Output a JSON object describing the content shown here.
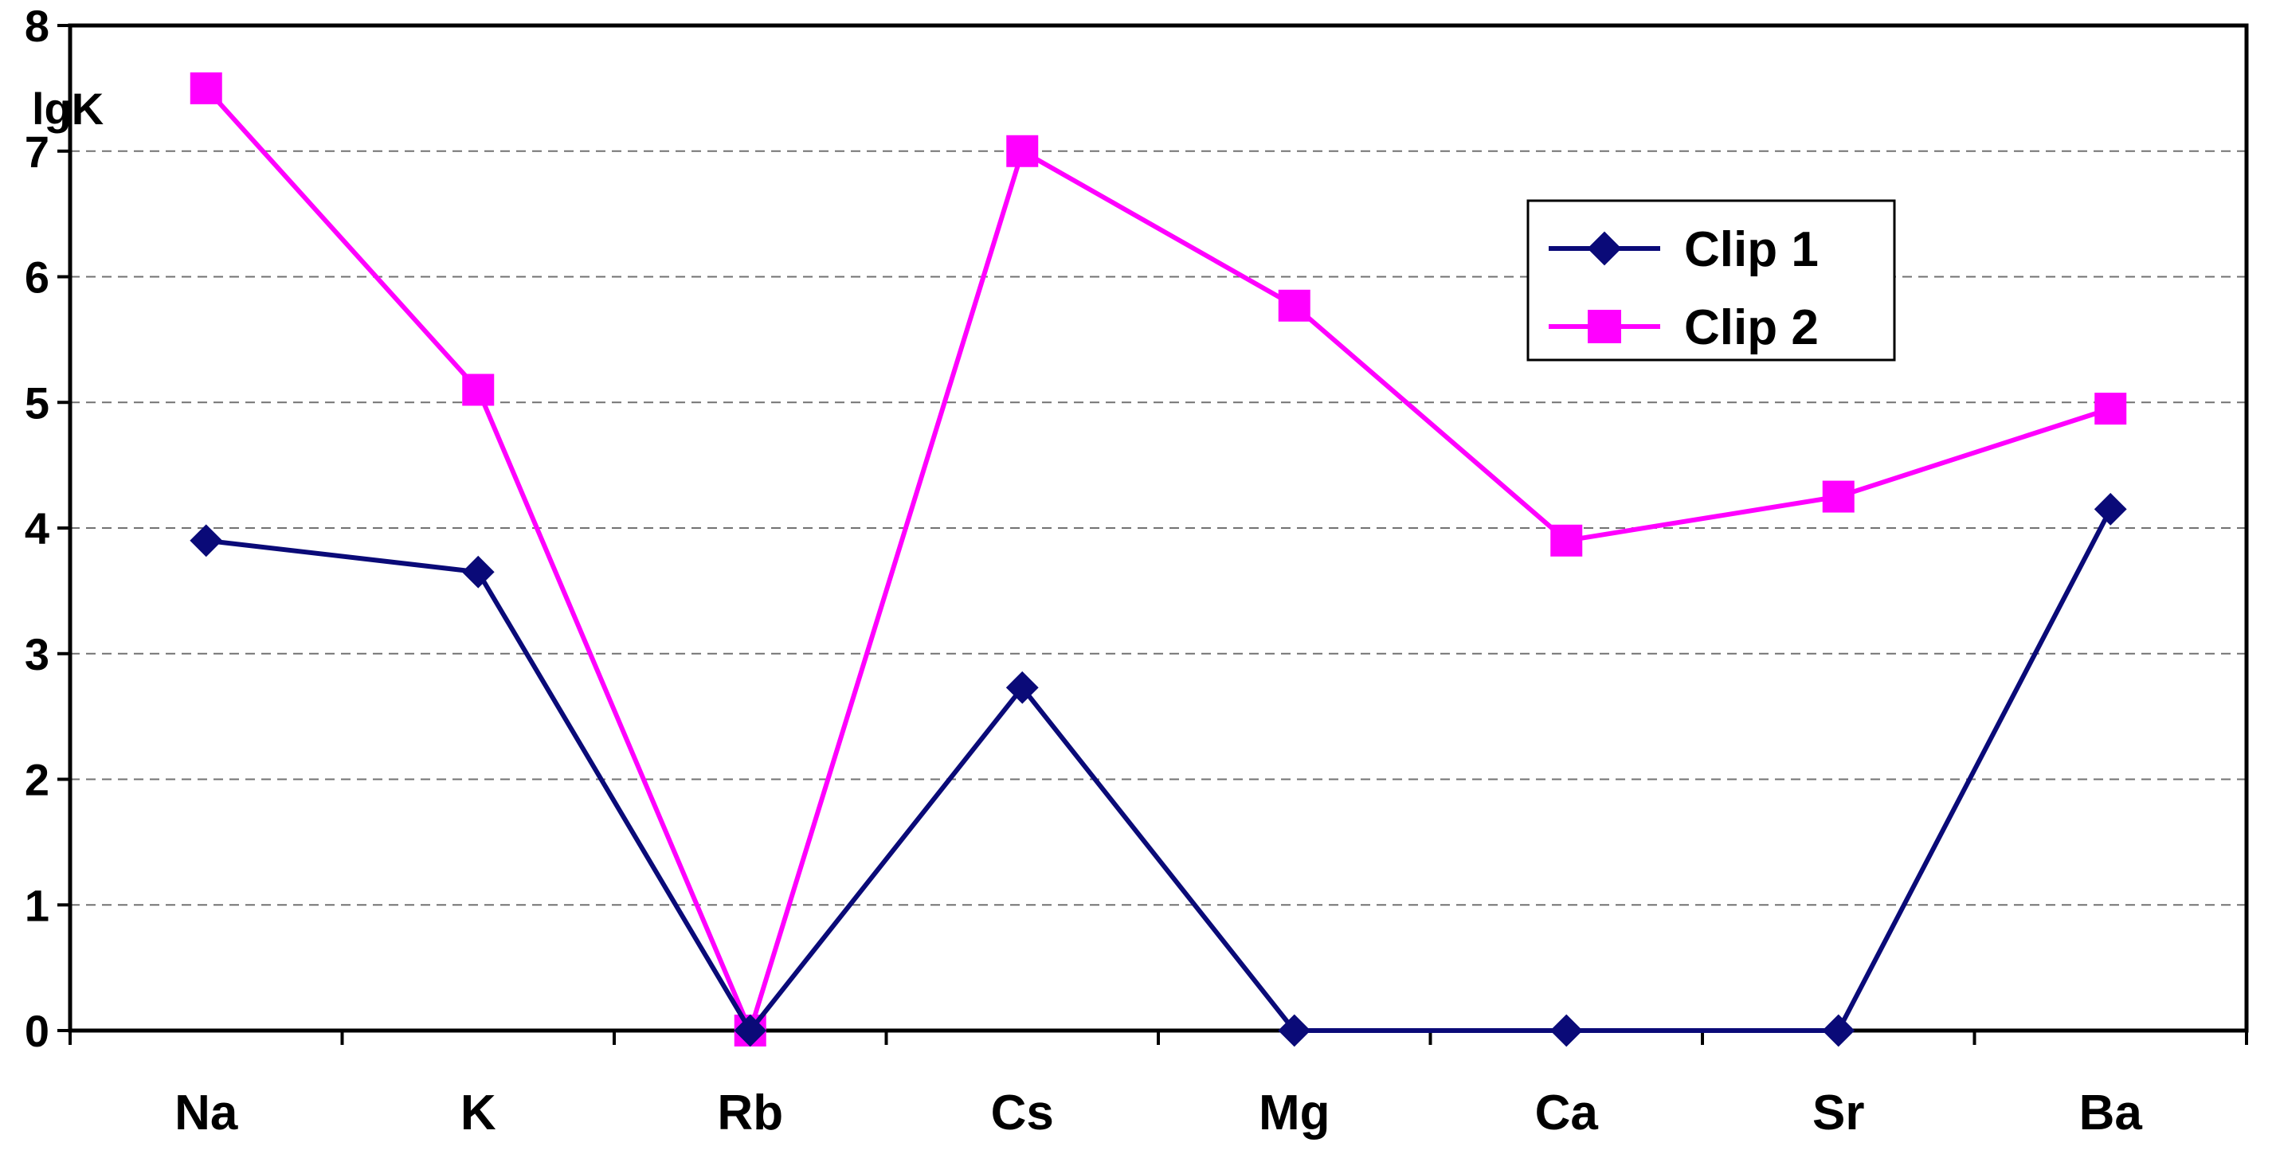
{
  "chart_data": {
    "type": "line",
    "title": "",
    "xlabel": "",
    "ylabel": "lgK",
    "categories": [
      "Na",
      "K",
      "Rb",
      "Cs",
      "Mg",
      "Ca",
      "Sr",
      "Ba"
    ],
    "ylim": [
      0,
      8
    ],
    "yticks": [
      "0",
      "1",
      "2",
      "3",
      "4",
      "5",
      "6",
      "7",
      "8"
    ],
    "grid": "horizontal dashed",
    "legend_position": "top-right",
    "series": [
      {
        "name": "Clip 1",
        "marker": "diamond",
        "color": "#0a0a78",
        "values": [
          3.9,
          3.65,
          0,
          2.73,
          0,
          0,
          0,
          4.15
        ]
      },
      {
        "name": "Clip 2",
        "marker": "square",
        "color": "#ff00ff",
        "values": [
          7.5,
          5.1,
          0,
          7.0,
          5.77,
          3.9,
          4.25,
          4.95
        ]
      }
    ]
  }
}
